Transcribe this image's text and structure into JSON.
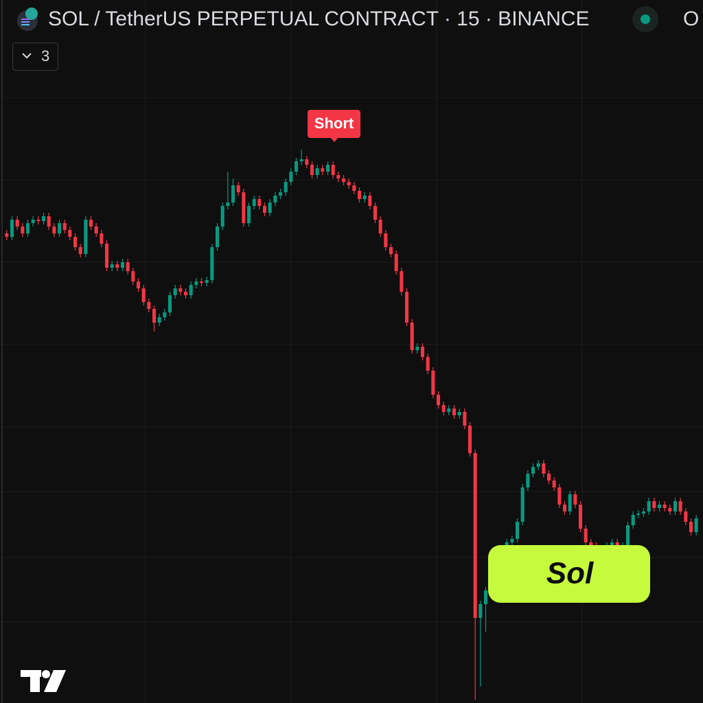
{
  "header": {
    "title": "SOL / TetherUS PERPETUAL CONTRACT · 15 · BINANCE",
    "ohlc_label": "O"
  },
  "indicators_toggle": {
    "count": 3
  },
  "chart_data": {
    "type": "candlestick",
    "open": [
      684,
      679,
      704,
      694,
      684,
      699,
      704,
      702,
      709,
      694,
      684,
      699,
      689,
      679,
      664,
      654,
      704,
      694,
      684,
      669,
      634,
      639,
      634,
      642,
      629,
      614,
      604,
      584,
      574,
      554,
      562,
      569,
      594,
      604,
      599,
      594,
      609,
      614,
      612,
      616,
      664,
      694,
      724,
      729,
      754,
      744,
      699,
      724,
      734,
      724,
      714,
      729,
      739,
      744,
      759,
      774,
      789,
      792,
      784,
      769,
      779,
      774,
      784,
      769,
      764,
      759,
      754,
      746,
      734,
      739,
      724,
      704,
      684,
      664,
      654,
      629,
      599,
      554,
      514,
      519,
      504,
      484,
      449,
      434,
      424,
      429,
      419,
      424,
      404,
      364,
      124,
      144,
      164,
      194,
      204,
      224,
      234,
      239,
      264,
      314,
      334,
      344,
      349,
      334,
      324,
      314,
      289,
      279,
      304,
      289,
      254,
      234,
      229,
      224,
      224,
      229,
      234,
      224,
      229,
      259,
      274,
      276,
      279,
      294,
      284,
      289,
      284,
      279,
      294,
      279,
      264,
      249
    ],
    "high": [
      689,
      709,
      709,
      699,
      704,
      709,
      709,
      714,
      714,
      699,
      704,
      704,
      694,
      684,
      669,
      709,
      709,
      699,
      689,
      674,
      644,
      644,
      647,
      647,
      634,
      619,
      609,
      589,
      579,
      567,
      574,
      599,
      609,
      609,
      604,
      614,
      619,
      619,
      621,
      669,
      699,
      729,
      774,
      764,
      759,
      749,
      729,
      739,
      739,
      729,
      734,
      744,
      749,
      764,
      779,
      794,
      806,
      797,
      789,
      784,
      784,
      789,
      789,
      774,
      769,
      764,
      759,
      751,
      744,
      744,
      729,
      709,
      689,
      669,
      659,
      634,
      604,
      559,
      524,
      524,
      509,
      489,
      454,
      439,
      434,
      434,
      429,
      429,
      409,
      369,
      149,
      169,
      199,
      209,
      229,
      239,
      244,
      269,
      319,
      339,
      349,
      354,
      354,
      339,
      329,
      319,
      294,
      309,
      309,
      294,
      259,
      239,
      234,
      229,
      234,
      239,
      239,
      234,
      264,
      279,
      281,
      284,
      299,
      299,
      294,
      294,
      289,
      299,
      299,
      284,
      269,
      274
    ],
    "low": [
      674,
      674,
      689,
      679,
      679,
      694,
      697,
      697,
      689,
      679,
      679,
      684,
      674,
      659,
      649,
      649,
      689,
      679,
      664,
      629,
      629,
      629,
      629,
      624,
      609,
      599,
      579,
      569,
      541,
      549,
      557,
      564,
      589,
      594,
      589,
      589,
      604,
      607,
      607,
      611,
      659,
      689,
      719,
      724,
      739,
      694,
      694,
      719,
      719,
      709,
      709,
      724,
      734,
      739,
      754,
      769,
      784,
      779,
      764,
      764,
      769,
      769,
      764,
      759,
      754,
      749,
      741,
      729,
      729,
      719,
      699,
      679,
      659,
      649,
      624,
      594,
      549,
      509,
      509,
      499,
      479,
      444,
      429,
      419,
      419,
      414,
      414,
      399,
      359,
      4,
      24,
      104,
      159,
      189,
      199,
      219,
      229,
      234,
      259,
      309,
      329,
      339,
      329,
      319,
      309,
      284,
      274,
      274,
      284,
      249,
      229,
      224,
      219,
      219,
      219,
      224,
      219,
      219,
      224,
      254,
      269,
      271,
      274,
      279,
      279,
      279,
      274,
      274,
      274,
      259,
      244,
      244
    ],
    "close": [
      679,
      704,
      694,
      684,
      699,
      704,
      702,
      709,
      694,
      684,
      699,
      689,
      679,
      664,
      654,
      704,
      694,
      684,
      669,
      634,
      639,
      634,
      642,
      629,
      614,
      604,
      584,
      574,
      554,
      562,
      569,
      594,
      604,
      599,
      594,
      609,
      614,
      612,
      616,
      664,
      694,
      724,
      729,
      754,
      744,
      699,
      724,
      734,
      724,
      714,
      729,
      739,
      744,
      759,
      774,
      789,
      792,
      784,
      769,
      779,
      774,
      784,
      769,
      764,
      759,
      754,
      746,
      734,
      739,
      724,
      704,
      684,
      664,
      654,
      629,
      599,
      554,
      514,
      519,
      504,
      484,
      449,
      434,
      424,
      429,
      419,
      424,
      404,
      364,
      124,
      144,
      164,
      194,
      204,
      224,
      234,
      239,
      264,
      314,
      334,
      344,
      349,
      334,
      324,
      314,
      289,
      279,
      304,
      289,
      254,
      234,
      229,
      224,
      224,
      229,
      234,
      224,
      229,
      259,
      274,
      276,
      279,
      294,
      284,
      289,
      284,
      279,
      294,
      279,
      264,
      249,
      269
    ],
    "ylim": [
      0,
      1024
    ],
    "up_color": "#089981",
    "down_color": "#f23645"
  },
  "annotations": {
    "signal": "Short",
    "badge": "Sol"
  }
}
